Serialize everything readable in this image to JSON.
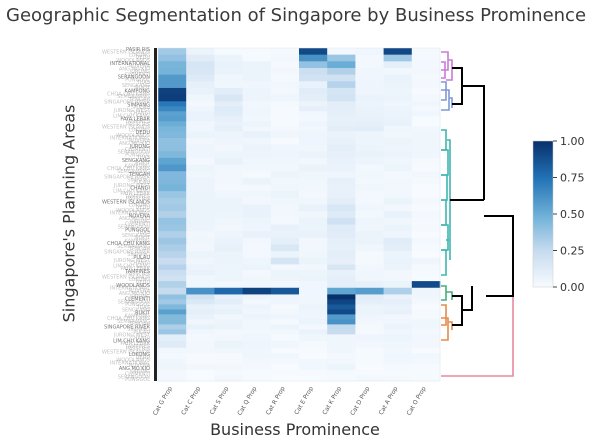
{
  "chart_data": {
    "type": "heatmap",
    "title": "Geographic Segmentation of Singapore by Business Prominence",
    "xlabel": "Business Prominence",
    "ylabel": "Singapore's Planning Areas",
    "x_categories": [
      "Cat G Prop",
      "Cat C Prop",
      "Cat S Prop",
      "Cat Q Prop",
      "Cat R Prop",
      "Cat E Prop",
      "Cat K Prop",
      "Cat D Prop",
      "Cat A Prop",
      "Cat O Prop"
    ],
    "colorbar": {
      "min": 0,
      "max": 1,
      "ticks": [
        "1.00",
        "0.75",
        "0.50",
        "0.25",
        "0.00"
      ]
    },
    "colorscale": [
      "#f7fbff",
      "#08306b"
    ],
    "visible_row_labels": [
      "PASIR RIS",
      "WESTERN ISLANDS",
      "LOKONG",
      "DEDU",
      "WOODLANDS",
      "INTERNATIONAL",
      "NOVENA",
      "ANG MO KIO",
      "JURONG",
      "CLEMENTI",
      "SERANGOON",
      "PUNGGOL",
      "TUAS",
      "SENGKANG",
      "BUKIT",
      "KAMPONG",
      "CHOA CHU KANG",
      "SEMBAWANG",
      "TENGAH",
      "SINGAPORE RIVER",
      "SIMPANG",
      "PULAU",
      "JURONG WEST",
      "CHANGI",
      "LIM CHU KANG",
      "PAYA LEBAR",
      "TAMPINES"
    ],
    "row_bands": [
      [
        0.0,
        0.02,
        [
          0.35,
          0.06,
          0.03,
          0.02,
          0.02,
          0.9,
          0.04,
          0.02,
          0.9,
          0.02
        ]
      ],
      [
        0.02,
        0.04,
        [
          0.42,
          0.1,
          0.05,
          0.03,
          0.03,
          0.65,
          0.35,
          0.04,
          0.35,
          0.02
        ]
      ],
      [
        0.04,
        0.06,
        [
          0.5,
          0.22,
          0.05,
          0.04,
          0.03,
          0.4,
          0.45,
          0.04,
          0.1,
          0.02
        ]
      ],
      [
        0.06,
        0.08,
        [
          0.45,
          0.18,
          0.08,
          0.04,
          0.03,
          0.25,
          0.3,
          0.05,
          0.05,
          0.02
        ]
      ],
      [
        0.08,
        0.1,
        [
          0.6,
          0.15,
          0.06,
          0.04,
          0.03,
          0.15,
          0.2,
          0.05,
          0.06,
          0.02
        ]
      ],
      [
        0.1,
        0.12,
        [
          0.55,
          0.08,
          0.06,
          0.05,
          0.03,
          0.12,
          0.35,
          0.05,
          0.05,
          0.02
        ]
      ],
      [
        0.12,
        0.14,
        [
          0.88,
          0.08,
          0.12,
          0.05,
          0.03,
          0.1,
          0.18,
          0.05,
          0.06,
          0.02
        ]
      ],
      [
        0.14,
        0.16,
        [
          0.92,
          0.06,
          0.18,
          0.04,
          0.03,
          0.08,
          0.14,
          0.05,
          0.05,
          0.02
        ]
      ],
      [
        0.16,
        0.19,
        [
          0.72,
          0.05,
          0.12,
          0.04,
          0.03,
          0.06,
          0.1,
          0.05,
          0.05,
          0.02
        ]
      ],
      [
        0.19,
        0.22,
        [
          0.6,
          0.05,
          0.1,
          0.05,
          0.03,
          0.05,
          0.08,
          0.06,
          0.05,
          0.02
        ]
      ],
      [
        0.22,
        0.25,
        [
          0.5,
          0.06,
          0.08,
          0.05,
          0.03,
          0.05,
          0.1,
          0.12,
          0.06,
          0.02
        ]
      ],
      [
        0.25,
        0.29,
        [
          0.45,
          0.05,
          0.06,
          0.05,
          0.03,
          0.04,
          0.08,
          0.06,
          0.05,
          0.02
        ]
      ],
      [
        0.29,
        0.33,
        [
          0.4,
          0.05,
          0.05,
          0.04,
          0.03,
          0.04,
          0.08,
          0.05,
          0.05,
          0.02
        ]
      ],
      [
        0.33,
        0.37,
        [
          0.55,
          0.04,
          0.05,
          0.04,
          0.03,
          0.04,
          0.06,
          0.04,
          0.04,
          0.02
        ]
      ],
      [
        0.37,
        0.41,
        [
          0.48,
          0.04,
          0.04,
          0.04,
          0.03,
          0.04,
          0.07,
          0.04,
          0.04,
          0.02
        ]
      ],
      [
        0.41,
        0.45,
        [
          0.42,
          0.05,
          0.04,
          0.04,
          0.04,
          0.04,
          0.08,
          0.04,
          0.04,
          0.02
        ]
      ],
      [
        0.45,
        0.49,
        [
          0.38,
          0.05,
          0.04,
          0.05,
          0.04,
          0.05,
          0.12,
          0.04,
          0.05,
          0.02
        ]
      ],
      [
        0.49,
        0.53,
        [
          0.35,
          0.05,
          0.05,
          0.05,
          0.04,
          0.05,
          0.15,
          0.04,
          0.05,
          0.02
        ]
      ],
      [
        0.53,
        0.57,
        [
          0.36,
          0.05,
          0.05,
          0.05,
          0.06,
          0.05,
          0.12,
          0.04,
          0.05,
          0.02
        ]
      ],
      [
        0.57,
        0.61,
        [
          0.32,
          0.05,
          0.08,
          0.04,
          0.15,
          0.04,
          0.1,
          0.04,
          0.1,
          0.02
        ]
      ],
      [
        0.61,
        0.65,
        [
          0.28,
          0.05,
          0.06,
          0.04,
          0.12,
          0.04,
          0.1,
          0.04,
          0.05,
          0.02
        ]
      ],
      [
        0.65,
        0.7,
        [
          0.25,
          0.05,
          0.05,
          0.04,
          0.05,
          0.04,
          0.14,
          0.05,
          0.05,
          0.02
        ]
      ],
      [
        0.7,
        0.72,
        [
          0.35,
          0.05,
          0.05,
          0.04,
          0.04,
          0.04,
          0.1,
          0.06,
          0.06,
          0.9
        ]
      ],
      [
        0.72,
        0.74,
        [
          0.2,
          0.6,
          0.8,
          0.9,
          0.85,
          0.05,
          0.5,
          0.6,
          0.3,
          0.05
        ]
      ],
      [
        0.74,
        0.77,
        [
          0.4,
          0.15,
          0.1,
          0.05,
          0.05,
          0.05,
          0.98,
          0.1,
          0.08,
          0.03
        ]
      ],
      [
        0.77,
        0.8,
        [
          0.5,
          0.08,
          0.06,
          0.05,
          0.04,
          0.05,
          0.85,
          0.05,
          0.06,
          0.02
        ]
      ],
      [
        0.8,
        0.83,
        [
          0.45,
          0.06,
          0.05,
          0.04,
          0.04,
          0.04,
          0.6,
          0.04,
          0.05,
          0.02
        ]
      ],
      [
        0.83,
        0.86,
        [
          0.35,
          0.06,
          0.05,
          0.04,
          0.04,
          0.04,
          0.3,
          0.04,
          0.05,
          0.02
        ]
      ],
      [
        0.86,
        0.9,
        [
          0.1,
          0.04,
          0.04,
          0.04,
          0.03,
          0.04,
          0.06,
          0.04,
          0.04,
          0.02
        ]
      ],
      [
        0.9,
        1.0,
        [
          0.03,
          0.02,
          0.02,
          0.02,
          0.02,
          0.02,
          0.03,
          0.02,
          0.02,
          0.01
        ]
      ]
    ],
    "dendrogram_colors": [
      "#c87bd6",
      "#7e98d8",
      "#3fb6b0",
      "#44b07a",
      "#e58a4a",
      "#e58aa0",
      "#000000"
    ]
  }
}
